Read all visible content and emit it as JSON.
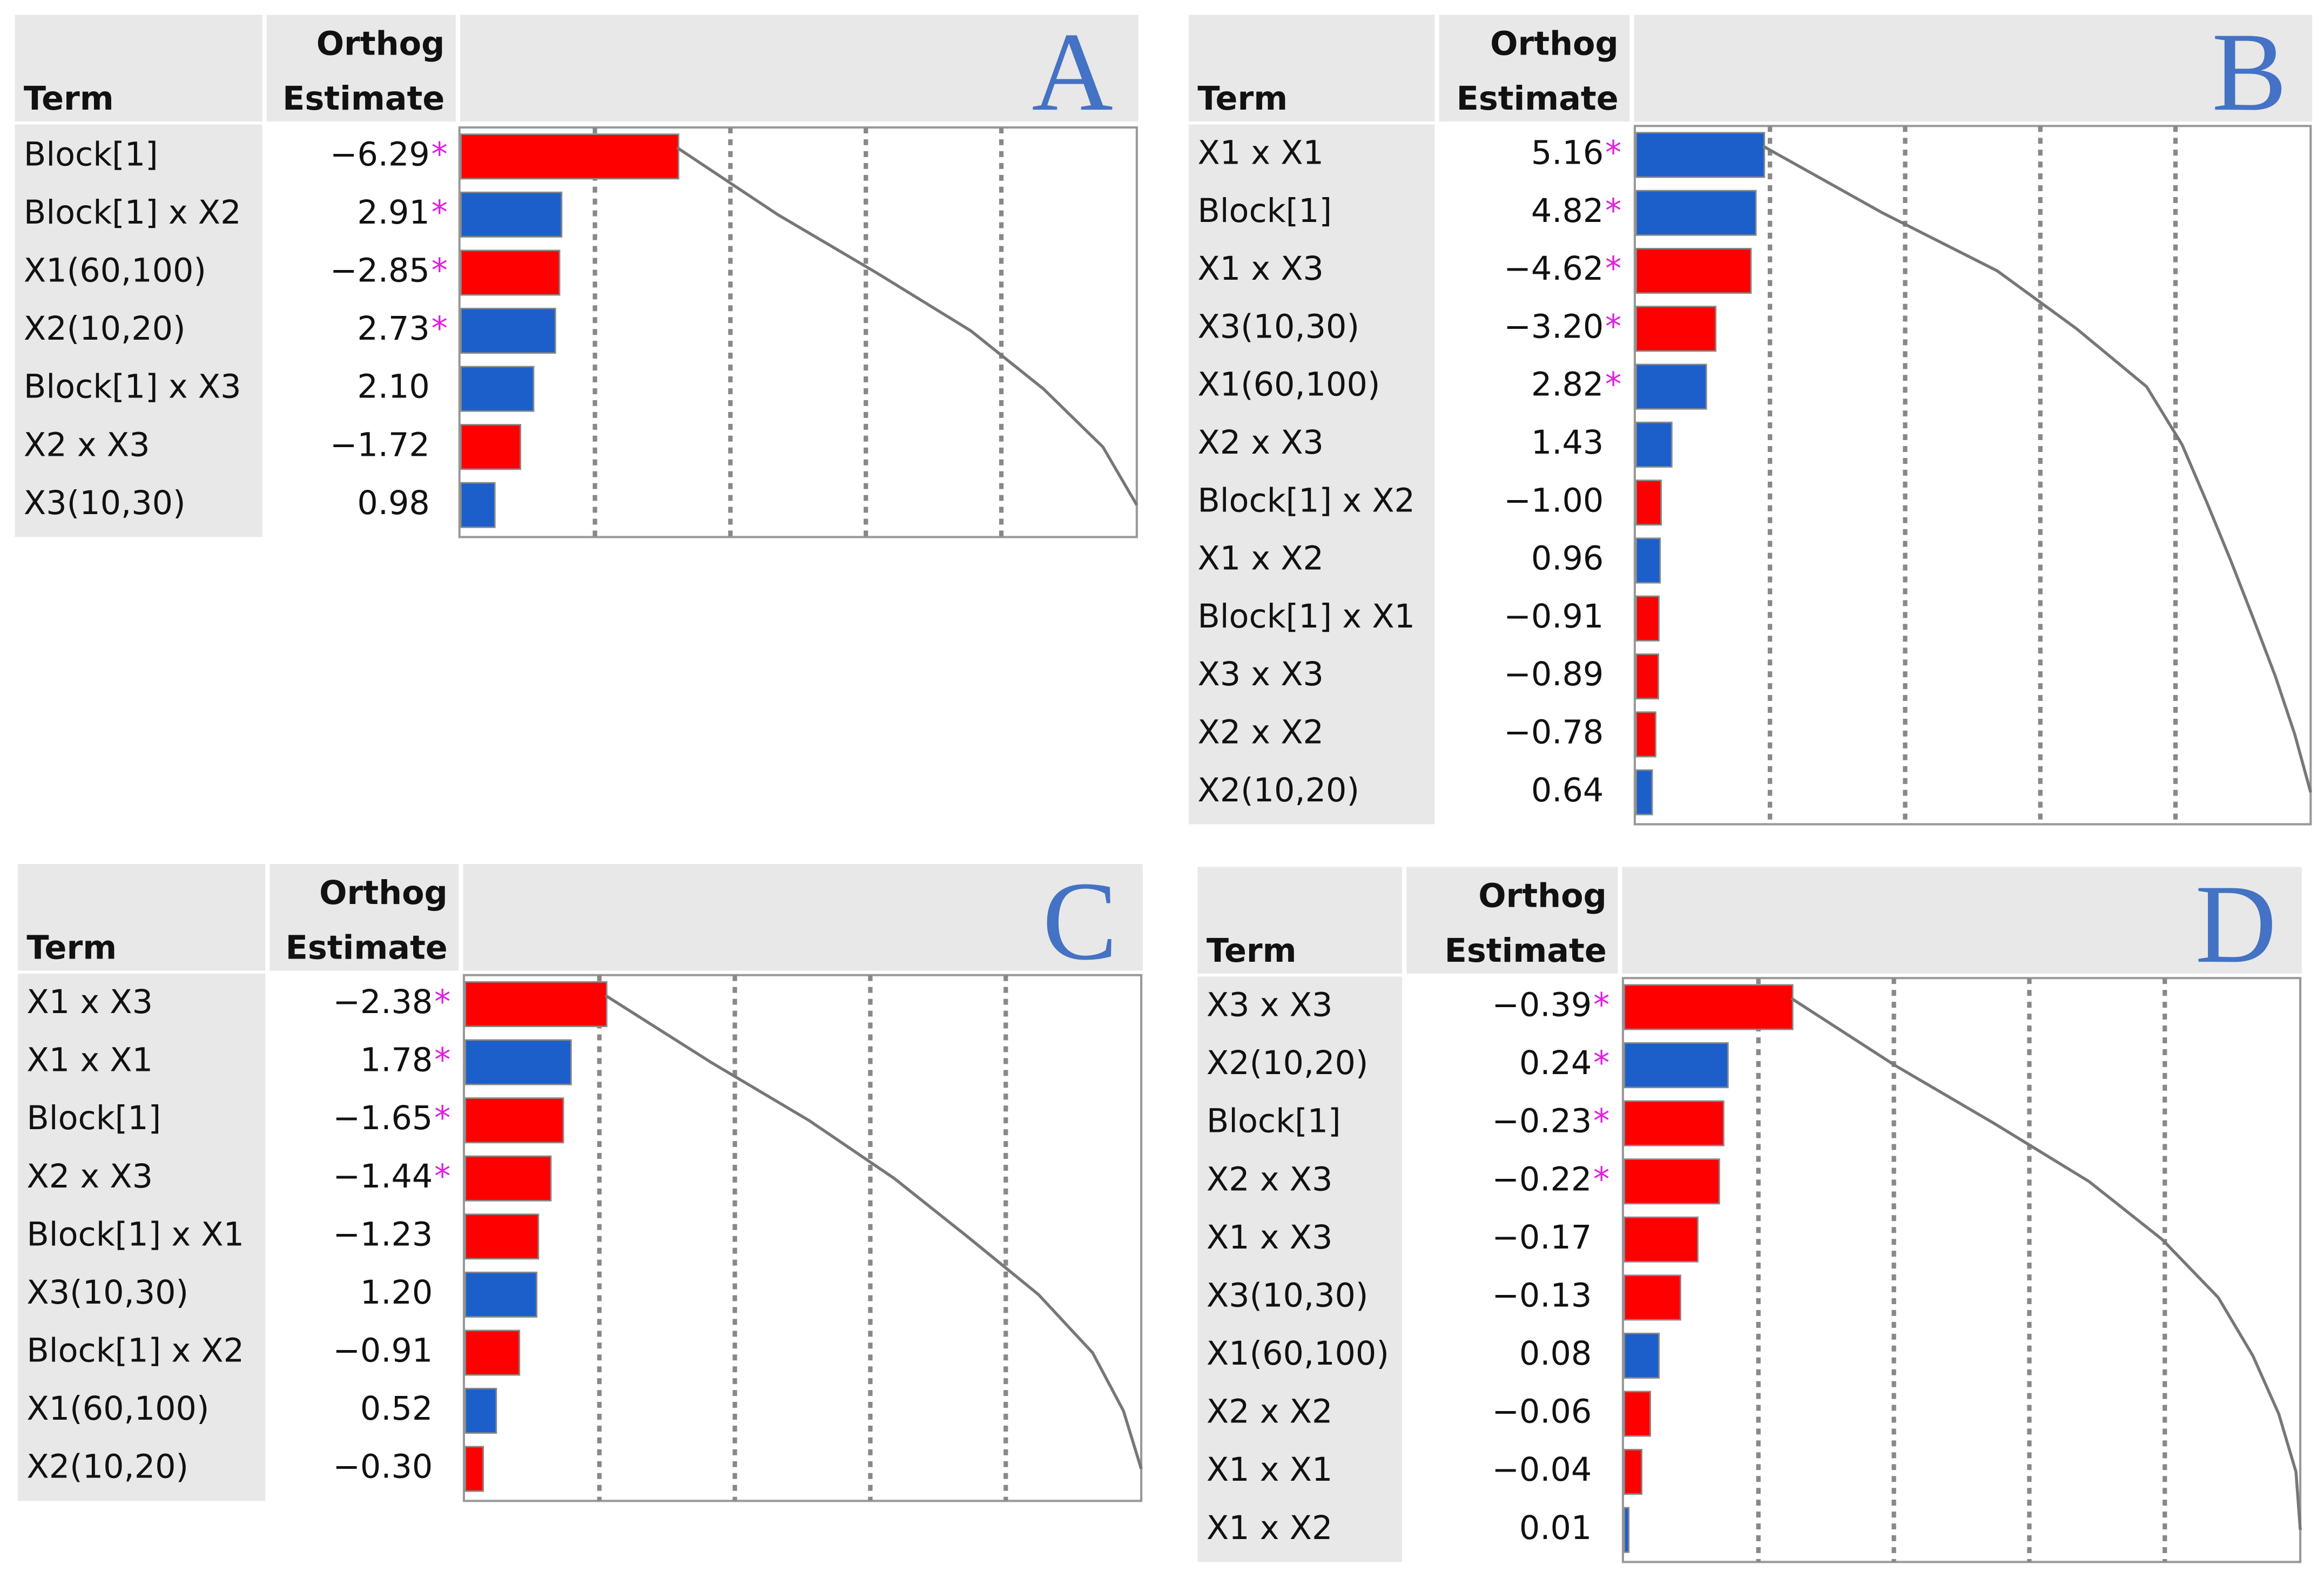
{
  "chart_data": [
    {
      "type": "pareto",
      "title": "A",
      "term_header": "Term",
      "estimate_header": [
        "Orthog",
        "Estimate"
      ],
      "significance_marker": "*",
      "colors": {
        "negative": "#ff0000",
        "positive": "#1c5fcb"
      },
      "categories": [
        "Block[1]",
        "Block[1] x X2",
        "X1(60,100)",
        "X2(10,20)",
        "Block[1] x X3",
        "X2 x X3",
        "X3(10,30)"
      ],
      "values": [
        -6.29,
        2.91,
        -2.85,
        2.73,
        2.1,
        -1.72,
        0.98
      ],
      "value_labels": [
        "−6.29",
        "2.91",
        "−2.85",
        "2.73",
        "2.10",
        "−1.72",
        "0.98"
      ],
      "significant": [
        true,
        true,
        true,
        true,
        false,
        false,
        false
      ]
    },
    {
      "type": "pareto",
      "title": "B",
      "term_header": "Term",
      "estimate_header": [
        "Orthog",
        "Estimate"
      ],
      "significance_marker": "*",
      "colors": {
        "negative": "#ff0000",
        "positive": "#1c5fcb"
      },
      "categories": [
        "X1 x X1",
        "Block[1]",
        "X1 x X3",
        "X3(10,30)",
        "X1(60,100)",
        "X2 x X3",
        "Block[1] x X2",
        "X1 x X2",
        "Block[1] x X1",
        "X3 x X3",
        "X2 x X2",
        "X2(10,20)"
      ],
      "values": [
        5.16,
        4.82,
        -4.62,
        -3.2,
        2.82,
        1.43,
        -1.0,
        0.96,
        -0.91,
        -0.89,
        -0.78,
        0.64
      ],
      "value_labels": [
        "5.16",
        "4.82",
        "−4.62",
        "−3.20",
        "2.82",
        "1.43",
        "−1.00",
        "0.96",
        "−0.91",
        "−0.89",
        "−0.78",
        "0.64"
      ],
      "significant": [
        true,
        true,
        true,
        true,
        true,
        false,
        false,
        false,
        false,
        false,
        false,
        false
      ]
    },
    {
      "type": "pareto",
      "title": "C",
      "term_header": "Term",
      "estimate_header": [
        "Orthog",
        "Estimate"
      ],
      "significance_marker": "*",
      "colors": {
        "negative": "#ff0000",
        "positive": "#1c5fcb"
      },
      "categories": [
        "X1 x X3",
        "X1 x X1",
        "Block[1]",
        "X2 x X3",
        "Block[1] x X1",
        "X3(10,30)",
        "Block[1] x X2",
        "X1(60,100)",
        "X2(10,20)"
      ],
      "values": [
        -2.38,
        1.78,
        -1.65,
        -1.44,
        -1.23,
        1.2,
        -0.91,
        0.52,
        -0.3
      ],
      "value_labels": [
        "−2.38",
        "1.78",
        "−1.65",
        "−1.44",
        "−1.23",
        "1.20",
        "−0.91",
        "0.52",
        "−0.30"
      ],
      "significant": [
        true,
        true,
        true,
        true,
        false,
        false,
        false,
        false,
        false
      ]
    },
    {
      "type": "pareto",
      "title": "D",
      "term_header": "Term",
      "estimate_header": [
        "Orthog",
        "Estimate"
      ],
      "significance_marker": "*",
      "colors": {
        "negative": "#ff0000",
        "positive": "#1c5fcb"
      },
      "categories": [
        "X3 x X3",
        "X2(10,20)",
        "Block[1]",
        "X2 x X3",
        "X1 x X3",
        "X3(10,30)",
        "X1(60,100)",
        "X2 x X2",
        "X1 x X1",
        "X1 x X2"
      ],
      "values": [
        -0.39,
        0.24,
        -0.23,
        -0.22,
        -0.17,
        -0.13,
        0.08,
        -0.06,
        -0.04,
        0.01
      ],
      "value_labels": [
        "−0.39",
        "0.24",
        "−0.23",
        "−0.22",
        "−0.17",
        "−0.13",
        "0.08",
        "−0.06",
        "−0.04",
        "0.01"
      ],
      "significant": [
        true,
        true,
        true,
        true,
        false,
        false,
        false,
        false,
        false,
        false
      ]
    }
  ]
}
